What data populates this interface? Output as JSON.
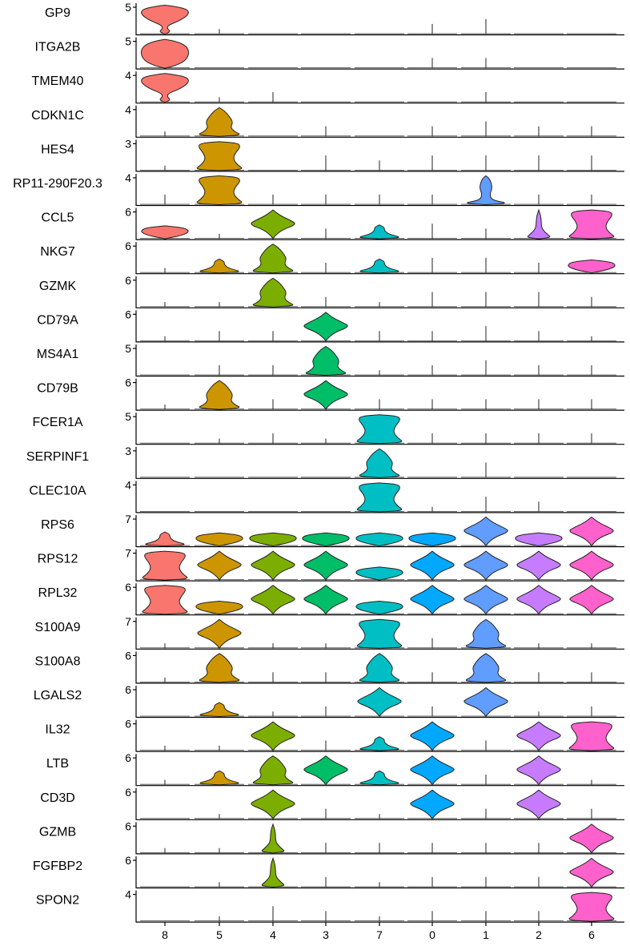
{
  "chart_data": {
    "type": "violin",
    "categories": [
      "8",
      "5",
      "4",
      "3",
      "7",
      "0",
      "1",
      "2",
      "6"
    ],
    "cluster_colors": {
      "8": "#F8766D",
      "5": "#CD9600",
      "4": "#7CAE00",
      "3": "#00BE67",
      "7": "#00BFC4",
      "0": "#00A9FF",
      "1": "#619CFF",
      "2": "#C77CFF",
      "6": "#FF61CC"
    },
    "rows": [
      {
        "gene": "GP9",
        "ymax": "5",
        "shapes": {
          "8": "pp",
          "5": "s1",
          "0": "s2",
          "1": "s3"
        }
      },
      {
        "gene": "ITGA2B",
        "ymax": "5",
        "shapes": {
          "8": "pm",
          "0": "s2",
          "1": "s2"
        }
      },
      {
        "gene": "TMEM40",
        "ymax": "4",
        "shapes": {
          "8": "pp",
          "5": "s1",
          "4": "s2",
          "1": "s2"
        }
      },
      {
        "gene": "CDKN1C",
        "ymax": "4",
        "shapes": {
          "8": "s1",
          "5": "ur",
          "3": "s2",
          "0": "s2",
          "1": "s3",
          "2": "s2",
          "6": "s2"
        }
      },
      {
        "gene": "HES4",
        "ymax": "3",
        "shapes": {
          "8": "s1",
          "5": "bw",
          "3": "s3",
          "7": "s2",
          "0": "s3",
          "1": "s3",
          "2": "s3",
          "6": "s3"
        }
      },
      {
        "gene": "RP11-290F20.3",
        "ymax": "4",
        "shapes": {
          "8": "s2",
          "5": "bw",
          "4": "s2",
          "3": "s2",
          "7": "s2",
          "0": "s2",
          "1": "dl",
          "2": "s2",
          "6": "s2"
        }
      },
      {
        "gene": "CCL5",
        "ymax": "6",
        "shapes": {
          "8": "tw",
          "5": "s1",
          "4": "dh",
          "3": "s2",
          "7": "lw",
          "0": "s3",
          "1": "s2",
          "2": "sp",
          "6": "bw"
        }
      },
      {
        "gene": "NKG7",
        "ymax": "6",
        "shapes": {
          "8": "s1",
          "5": "lw",
          "4": "ur",
          "3": "s2",
          "7": "lw",
          "0": "s3",
          "1": "s3",
          "2": "s2",
          "6": "tw"
        }
      },
      {
        "gene": "GZMK",
        "ymax": "6",
        "shapes": {
          "8": "s1",
          "5": "s1",
          "4": "ur",
          "3": "s2",
          "7": "s1",
          "0": "s3",
          "1": "s3",
          "2": "s3",
          "6": "s2"
        }
      },
      {
        "gene": "CD79A",
        "ymax": "6",
        "shapes": {
          "8": "s1",
          "5": "s2",
          "4": "s2",
          "3": "dh",
          "7": "s2",
          "0": "s2",
          "1": "s3",
          "2": "s2",
          "6": "s1"
        }
      },
      {
        "gene": "MS4A1",
        "ymax": "5",
        "shapes": {
          "5": "s2",
          "4": "s2",
          "3": "ur",
          "7": "s1",
          "0": "s2",
          "1": "s3",
          "2": "s2",
          "6": "s2"
        }
      },
      {
        "gene": "CD79B",
        "ymax": "6",
        "shapes": {
          "8": "s1",
          "5": "ur",
          "4": "s2",
          "3": "dh",
          "7": "s2",
          "0": "s2",
          "1": "s2",
          "2": "s2",
          "6": "s2"
        }
      },
      {
        "gene": "FCER1A",
        "ymax": "5",
        "shapes": {
          "5": "s1",
          "4": "s2",
          "3": "s1",
          "7": "bw",
          "0": "s2",
          "1": "s2",
          "2": "s2",
          "6": "s2"
        }
      },
      {
        "gene": "SERPINF1",
        "ymax": "3",
        "shapes": {
          "7": "ur",
          "1": "s3"
        }
      },
      {
        "gene": "CLEC10A",
        "ymax": "4",
        "shapes": {
          "7": "bw",
          "0": "s1",
          "1": "s3",
          "2": "s2"
        }
      },
      {
        "gene": "RPS6",
        "ymax": "7",
        "shapes": {
          "8": "lw",
          "5": "tw",
          "4": "tw",
          "3": "tw",
          "7": "tw",
          "0": "tw",
          "1": "dh",
          "2": "tw",
          "6": "dh"
        }
      },
      {
        "gene": "RPS12",
        "ymax": "7",
        "shapes": {
          "8": "bw",
          "5": "dh",
          "4": "dh",
          "3": "dh",
          "7": "tw",
          "0": "dh",
          "1": "dh",
          "2": "dh",
          "6": "dh"
        }
      },
      {
        "gene": "RPL32",
        "ymax": "6",
        "shapes": {
          "8": "bw",
          "5": "tw",
          "4": "dh",
          "3": "dh",
          "7": "tw",
          "0": "dh",
          "1": "dh",
          "2": "dh",
          "6": "dh"
        }
      },
      {
        "gene": "S100A9",
        "ymax": "7",
        "shapes": {
          "8": "s1",
          "5": "dh",
          "4": "s1",
          "3": "s1",
          "7": "bw",
          "0": "s2",
          "1": "ur",
          "2": "s1",
          "6": "s1"
        }
      },
      {
        "gene": "S100A8",
        "ymax": "6",
        "shapes": {
          "8": "s1",
          "5": "ur",
          "4": "s2",
          "3": "s2",
          "7": "ur",
          "0": "s2",
          "1": "ur",
          "2": "s2",
          "6": "s2"
        }
      },
      {
        "gene": "LGALS2",
        "ymax": "6",
        "shapes": {
          "5": "lw",
          "4": "s1",
          "3": "s2",
          "7": "dh",
          "0": "s2",
          "1": "dh",
          "2": "s1",
          "6": "s2"
        }
      },
      {
        "gene": "IL32",
        "ymax": "6",
        "shapes": {
          "8": "s1",
          "5": "s1",
          "4": "dh",
          "3": "s2",
          "7": "lw",
          "0": "dh",
          "1": "s2",
          "2": "dh",
          "6": "bw"
        }
      },
      {
        "gene": "LTB",
        "ymax": "6",
        "shapes": {
          "8": "s1",
          "5": "lw",
          "4": "ur",
          "3": "dh",
          "7": "lw",
          "0": "dh",
          "1": "s2",
          "2": "dh",
          "6": "s1"
        }
      },
      {
        "gene": "CD3D",
        "ymax": "6",
        "shapes": {
          "5": "s1",
          "4": "dh",
          "3": "s2",
          "7": "s1",
          "0": "dh",
          "1": "s2",
          "2": "dh",
          "6": "s2"
        }
      },
      {
        "gene": "GZMB",
        "ymax": "6",
        "shapes": {
          "8": "s1",
          "5": "s1",
          "4": "sp",
          "3": "s2",
          "7": "s2",
          "0": "s2",
          "1": "s2",
          "2": "s2",
          "6": "dh"
        }
      },
      {
        "gene": "FGFBP2",
        "ymax": "6",
        "shapes": {
          "5": "s1",
          "4": "sp",
          "3": "s2",
          "7": "s1",
          "0": "s2",
          "1": "s2",
          "2": "s2",
          "6": "dh"
        }
      },
      {
        "gene": "SPON2",
        "ymax": "4",
        "shapes": {
          "5": "s1",
          "4": "s3",
          "3": "s2",
          "7": "s1",
          "0": "s2",
          "1": "s2",
          "2": "s2",
          "6": "bw"
        }
      }
    ]
  }
}
